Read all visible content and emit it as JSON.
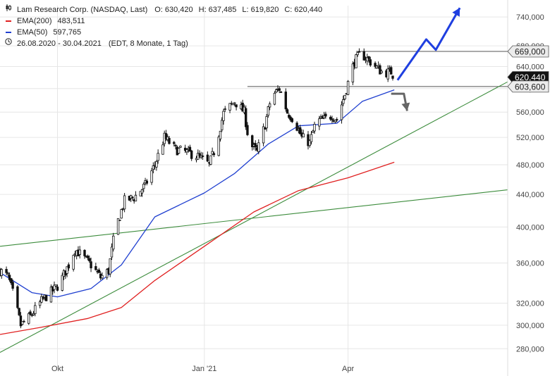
{
  "header": {
    "symbol_line": "Lam Research Corp. (NASDAQ, Last)",
    "ohlc": [
      {
        "label": "O:",
        "value": "630,420"
      },
      {
        "label": "H:",
        "value": "637,485"
      },
      {
        "label": "L:",
        "value": "619,820"
      },
      {
        "label": "C:",
        "value": "620,440"
      }
    ],
    "ema200_label": "EMA(200)",
    "ema200_value": "483,511",
    "ema50_label": "EMA(50)",
    "ema50_value": "597,765",
    "period": "26.08.2020 - 30.04.2021",
    "period_note": "(EDT, 8 Monate, 1 Tag)"
  },
  "colors": {
    "candle": "#111111",
    "ema200": "#e02020",
    "ema50": "#2040d0",
    "trend": "#3c8c3c",
    "projection_up": "#1f3fe0",
    "projection_down": "#666666",
    "level": "#555555"
  },
  "chart_data": {
    "type": "candlestick",
    "y_scale": "log",
    "y_range": [
      265,
      765
    ],
    "y_ticks": [
      {
        "v": 280,
        "label": "280,000"
      },
      {
        "v": 300,
        "label": "300,000"
      },
      {
        "v": 320,
        "label": "320,000"
      },
      {
        "v": 360,
        "label": "360,000"
      },
      {
        "v": 400,
        "label": "400,000"
      },
      {
        "v": 440,
        "label": "440,000"
      },
      {
        "v": 480,
        "label": "480,000"
      },
      {
        "v": 520,
        "label": "520,000"
      },
      {
        "v": 560,
        "label": "560,000"
      },
      {
        "v": 600,
        "label": "600,000"
      },
      {
        "v": 640,
        "label": "640,000"
      },
      {
        "v": 680,
        "label": "680,000"
      },
      {
        "v": 740,
        "label": "740,000"
      }
    ],
    "x_start": "2020-08-26",
    "x_end": "2021-07-10",
    "x_ticks": [
      {
        "date": "2020-10-01",
        "label": "Okt"
      },
      {
        "date": "2021-01-01",
        "label": "Jan '21"
      },
      {
        "date": "2021-04-01",
        "label": "Apr"
      }
    ],
    "price_path": [
      [
        "2020-08-26",
        352
      ],
      [
        "2020-08-31",
        346
      ],
      [
        "2020-09-03",
        330
      ],
      [
        "2020-09-08",
        300
      ],
      [
        "2020-09-14",
        308
      ],
      [
        "2020-09-21",
        322
      ],
      [
        "2020-09-28",
        332
      ],
      [
        "2020-10-02",
        338
      ],
      [
        "2020-10-08",
        358
      ],
      [
        "2020-10-12",
        375
      ],
      [
        "2020-10-16",
        368
      ],
      [
        "2020-10-22",
        358
      ],
      [
        "2020-10-28",
        345
      ],
      [
        "2020-11-02",
        352
      ],
      [
        "2020-11-06",
        395
      ],
      [
        "2020-11-12",
        432
      ],
      [
        "2020-11-18",
        436
      ],
      [
        "2020-11-25",
        452
      ],
      [
        "2020-12-01",
        480
      ],
      [
        "2020-12-07",
        520
      ],
      [
        "2020-12-14",
        502
      ],
      [
        "2020-12-21",
        498
      ],
      [
        "2020-12-28",
        492
      ],
      [
        "2021-01-04",
        480
      ],
      [
        "2021-01-08",
        505
      ],
      [
        "2021-01-13",
        558
      ],
      [
        "2021-01-20",
        578
      ],
      [
        "2021-01-26",
        560
      ],
      [
        "2021-01-29",
        512
      ],
      [
        "2021-02-03",
        498
      ],
      [
        "2021-02-08",
        540
      ],
      [
        "2021-02-12",
        586
      ],
      [
        "2021-02-17",
        600
      ],
      [
        "2021-02-22",
        560
      ],
      [
        "2021-02-26",
        548
      ],
      [
        "2021-03-03",
        520
      ],
      [
        "2021-03-08",
        512
      ],
      [
        "2021-03-12",
        545
      ],
      [
        "2021-03-17",
        548
      ],
      [
        "2021-03-22",
        555
      ],
      [
        "2021-03-25",
        548
      ],
      [
        "2021-03-30",
        590
      ],
      [
        "2021-04-05",
        650
      ],
      [
        "2021-04-09",
        665
      ],
      [
        "2021-04-14",
        652
      ],
      [
        "2021-04-19",
        638
      ],
      [
        "2021-04-23",
        628
      ],
      [
        "2021-04-28",
        630
      ],
      [
        "2021-04-30",
        620.44
      ]
    ],
    "ema200": [
      [
        "2020-08-26",
        292
      ],
      [
        "2020-09-20",
        298
      ],
      [
        "2020-10-20",
        306
      ],
      [
        "2020-11-10",
        316
      ],
      [
        "2020-12-01",
        342
      ],
      [
        "2021-01-01",
        378
      ],
      [
        "2021-02-01",
        418
      ],
      [
        "2021-03-01",
        445
      ],
      [
        "2021-04-01",
        462
      ],
      [
        "2021-04-30",
        483.511
      ]
    ],
    "ema50": [
      [
        "2020-08-26",
        350
      ],
      [
        "2020-09-15",
        330
      ],
      [
        "2020-10-01",
        326
      ],
      [
        "2020-10-22",
        334
      ],
      [
        "2020-11-10",
        358
      ],
      [
        "2020-12-01",
        412
      ],
      [
        "2021-01-01",
        442
      ],
      [
        "2021-01-20",
        468
      ],
      [
        "2021-02-10",
        510
      ],
      [
        "2021-03-01",
        538
      ],
      [
        "2021-03-25",
        542
      ],
      [
        "2021-04-10",
        578
      ],
      [
        "2021-04-30",
        597.765
      ]
    ],
    "trendlines": [
      {
        "from": [
          "2020-08-26",
          277
        ],
        "to": [
          "2021-07-10",
          612
        ]
      },
      {
        "from": [
          "2020-08-26",
          378
        ],
        "to": [
          "2021-07-10",
          446
        ]
      }
    ],
    "levels": [
      {
        "value": 669,
        "label": "669,000",
        "from": "2021-04-06"
      },
      {
        "value": 603.6,
        "label": "603,600",
        "from": "2021-01-28"
      }
    ],
    "last_price": {
      "value": 620.44,
      "label": "620,440"
    },
    "projection_up": [
      [
        "2021-05-02",
        615
      ],
      [
        "2021-05-20",
        693
      ],
      [
        "2021-05-26",
        672
      ],
      [
        "2021-06-10",
        760
      ]
    ],
    "projection_down": [
      [
        "2021-04-28",
        591
      ],
      [
        "2021-05-06",
        591
      ],
      [
        "2021-05-08",
        562
      ]
    ]
  }
}
